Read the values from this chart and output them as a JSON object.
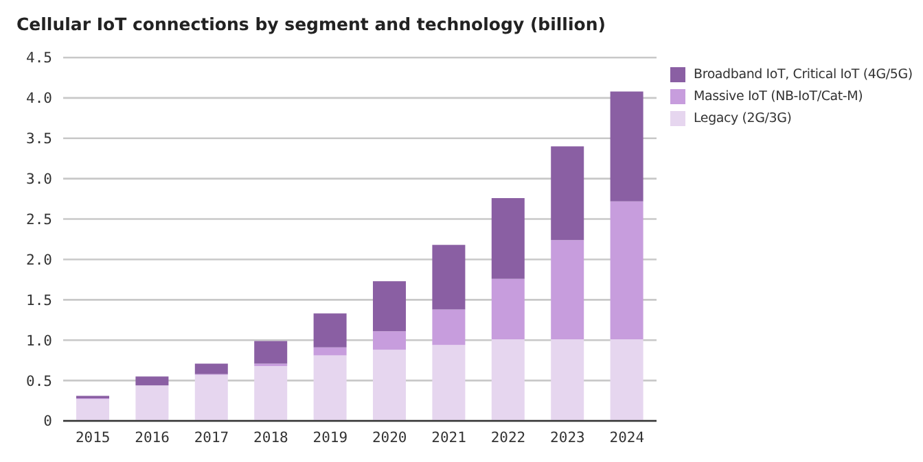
{
  "chart_data": {
    "type": "bar",
    "title": "Cellular IoT connections by segment and technology (billion)",
    "stacked": true,
    "categories": [
      "2015",
      "2016",
      "2017",
      "2018",
      "2019",
      "2020",
      "2021",
      "2022",
      "2023",
      "2024"
    ],
    "series": [
      {
        "name": "Legacy (2G/3G)",
        "color": "#e6d6ef",
        "values": [
          0.27,
          0.44,
          0.57,
          0.68,
          0.81,
          0.88,
          0.94,
          1.01,
          1.01,
          1.01
        ]
      },
      {
        "name": "Massive IoT (NB-IoT/Cat-M)",
        "color": "#c79ddd",
        "values": [
          0.01,
          0,
          0.01,
          0.03,
          0.1,
          0.23,
          0.44,
          0.75,
          1.23,
          1.71
        ]
      },
      {
        "name": "Broadband IoT, Critical IoT (4G/5G)",
        "color": "#8a5fa3",
        "values": [
          0.03,
          0.11,
          0.13,
          0.28,
          0.42,
          0.62,
          0.8,
          1.0,
          1.16,
          1.36
        ]
      }
    ],
    "ylim": [
      0,
      4.5
    ],
    "yticks": [
      0,
      0.5,
      {
        "value": 1,
        "label": "1.0"
      },
      1.5,
      {
        "value": 2,
        "label": "2.0"
      },
      2.5,
      {
        "value": 3,
        "label": "3.0"
      },
      3.5,
      {
        "value": 4,
        "label": "4.0"
      },
      4.5
    ],
    "grid": "y",
    "legend": "top right"
  }
}
